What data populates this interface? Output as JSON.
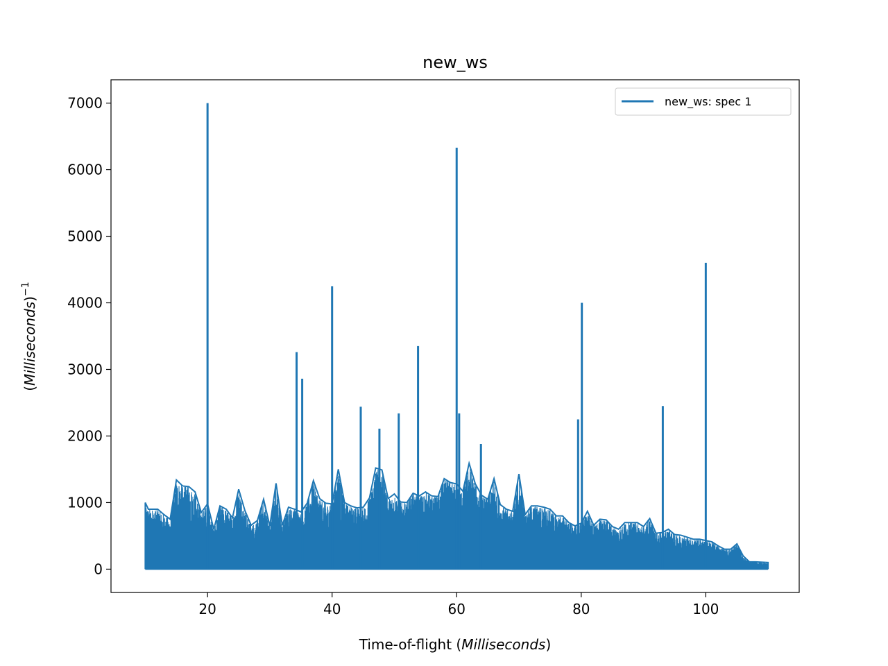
{
  "chart_data": {
    "type": "line",
    "title": "new_ws",
    "xlabel_prefix": "Time-of-flight (",
    "xlabel_italic": "Milliseconds",
    "xlabel_suffix": ")",
    "ylabel_italic": "Milliseconds",
    "ylabel_exponent": "−1",
    "xlim": [
      4.5,
      115
    ],
    "ylim": [
      -350,
      7350
    ],
    "x_ticks": [
      20,
      40,
      60,
      80,
      100
    ],
    "y_ticks": [
      0,
      1000,
      2000,
      3000,
      4000,
      5000,
      6000,
      7000
    ],
    "legend_position": "upper-right",
    "series": [
      {
        "name": "new_ws: spec 1",
        "color": "#1f77b4",
        "x_start": 10,
        "x_end": 110,
        "envelope": [
          [
            10.0,
            1000
          ],
          [
            10.5,
            900
          ],
          [
            12.0,
            900
          ],
          [
            13.0,
            820
          ],
          [
            14.0,
            750
          ],
          [
            15.0,
            1340
          ],
          [
            16.0,
            1250
          ],
          [
            17.0,
            1240
          ],
          [
            18.0,
            1160
          ],
          [
            19.0,
            850
          ],
          [
            20.0,
            980
          ],
          [
            21.0,
            600
          ],
          [
            22.0,
            950
          ],
          [
            23.0,
            900
          ],
          [
            24.0,
            770
          ],
          [
            25.0,
            1200
          ],
          [
            26.0,
            880
          ],
          [
            27.0,
            660
          ],
          [
            28.0,
            730
          ],
          [
            29.0,
            1050
          ],
          [
            30.0,
            650
          ],
          [
            31.0,
            1290
          ],
          [
            32.0,
            660
          ],
          [
            33.0,
            930
          ],
          [
            34.0,
            900
          ],
          [
            35.0,
            860
          ],
          [
            36.0,
            990
          ],
          [
            37.0,
            1330
          ],
          [
            38.0,
            1060
          ],
          [
            39.0,
            990
          ],
          [
            40.0,
            980
          ],
          [
            41.0,
            1500
          ],
          [
            42.0,
            1000
          ],
          [
            43.0,
            950
          ],
          [
            44.0,
            920
          ],
          [
            45.0,
            930
          ],
          [
            46.0,
            1070
          ],
          [
            47.0,
            1520
          ],
          [
            48.0,
            1490
          ],
          [
            49.0,
            1060
          ],
          [
            50.0,
            1130
          ],
          [
            51.0,
            1010
          ],
          [
            52.0,
            1000
          ],
          [
            53.0,
            1140
          ],
          [
            54.0,
            1100
          ],
          [
            55.0,
            1160
          ],
          [
            56.0,
            1100
          ],
          [
            57.0,
            1090
          ],
          [
            58.0,
            1360
          ],
          [
            59.0,
            1300
          ],
          [
            60.0,
            1280
          ],
          [
            61.0,
            1170
          ],
          [
            62.0,
            1590
          ],
          [
            63.0,
            1280
          ],
          [
            64.0,
            1110
          ],
          [
            65.0,
            1050
          ],
          [
            66.0,
            1360
          ],
          [
            67.0,
            970
          ],
          [
            68.0,
            900
          ],
          [
            69.0,
            870
          ],
          [
            70.0,
            1430
          ],
          [
            71.0,
            820
          ],
          [
            72.0,
            950
          ],
          [
            73.0,
            950
          ],
          [
            74.0,
            930
          ],
          [
            75.0,
            900
          ],
          [
            76.0,
            800
          ],
          [
            77.0,
            800
          ],
          [
            78.0,
            700
          ],
          [
            79.0,
            650
          ],
          [
            80.0,
            690
          ],
          [
            81.0,
            870
          ],
          [
            82.0,
            660
          ],
          [
            83.0,
            750
          ],
          [
            84.0,
            740
          ],
          [
            85.0,
            640
          ],
          [
            86.0,
            600
          ],
          [
            87.0,
            700
          ],
          [
            88.0,
            700
          ],
          [
            89.0,
            700
          ],
          [
            90.0,
            640
          ],
          [
            91.0,
            760
          ],
          [
            92.0,
            540
          ],
          [
            93.0,
            550
          ],
          [
            94.0,
            600
          ],
          [
            95.0,
            520
          ],
          [
            96.0,
            510
          ],
          [
            97.0,
            480
          ],
          [
            98.0,
            450
          ],
          [
            99.0,
            450
          ],
          [
            100.0,
            430
          ],
          [
            101.0,
            410
          ],
          [
            102.0,
            350
          ],
          [
            103.0,
            300
          ],
          [
            104.0,
            300
          ],
          [
            105.0,
            380
          ],
          [
            106.0,
            200
          ],
          [
            107.0,
            110
          ],
          [
            108.0,
            110
          ],
          [
            110.0,
            100
          ]
        ],
        "spikes": [
          [
            20.0,
            7000
          ],
          [
            34.3,
            3260
          ],
          [
            35.2,
            2860
          ],
          [
            40.0,
            4250
          ],
          [
            44.6,
            2440
          ],
          [
            47.6,
            2110
          ],
          [
            50.7,
            2340
          ],
          [
            53.8,
            3350
          ],
          [
            60.0,
            6330
          ],
          [
            60.4,
            2340
          ],
          [
            63.9,
            1880
          ],
          [
            79.5,
            2250
          ],
          [
            80.1,
            4000
          ],
          [
            93.1,
            2450
          ],
          [
            100.0,
            4600
          ]
        ]
      }
    ]
  }
}
